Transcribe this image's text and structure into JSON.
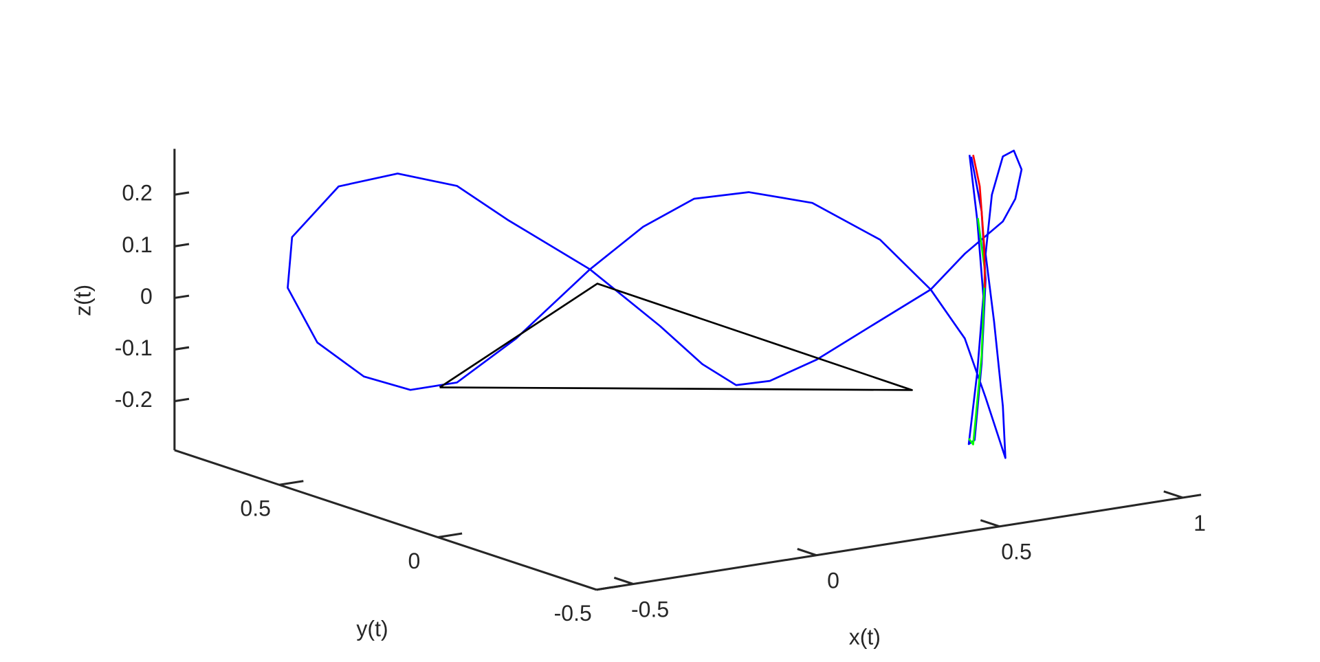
{
  "chart_data": {
    "type": "line3d",
    "xlabel": "x(t)",
    "ylabel": "y(t)",
    "zlabel": "z(t)",
    "xlim": [
      -0.6,
      1.05
    ],
    "ylim": [
      -0.5,
      0.83
    ],
    "zlim": [
      -0.295,
      0.289
    ],
    "xticks": [
      -0.5,
      0,
      0.5,
      1
    ],
    "yticks": [
      -0.5,
      0,
      0.5
    ],
    "zticks": [
      -0.2,
      -0.1,
      0,
      0.1,
      0.2
    ],
    "series": [
      {
        "color": "#0000ff",
        "x": [
          -0.185,
          -0.04,
          0.099,
          0.249,
          0.422,
          0.607,
          0.745,
          0.838,
          0.895,
          0.949,
          0.942,
          0.918,
          0.895,
          0.912,
          0.942,
          0.972,
          0.993,
          0.976,
          0.942,
          0.838,
          0.745,
          0.584,
          0.434,
          0.306,
          0.214,
          0.122,
          0.006,
          -0.185,
          -0.387,
          -0.548,
          -0.675,
          -0.802,
          -0.929,
          -1.01,
          -0.998,
          -0.871,
          -0.71,
          -0.548,
          -0.41,
          -0.185,
          null,
          0.851,
          0.872,
          0.889,
          0.872,
          0.849,
          0.865,
          0.884,
          0.895,
          0.884,
          0.856
        ],
        "y": [
          0,
          0,
          0,
          0,
          0,
          0,
          0,
          0,
          0,
          0,
          0,
          0,
          0,
          0,
          0,
          0,
          0,
          0,
          0,
          0,
          0,
          0,
          0,
          0,
          0,
          0,
          0,
          0,
          0,
          0,
          0,
          0,
          0,
          0,
          0,
          0,
          0,
          0,
          0,
          0,
          null,
          0,
          0,
          0,
          0,
          0,
          0,
          0,
          0,
          0,
          0
        ],
        "z": [
          0.178,
          0.244,
          0.283,
          0.279,
          0.239,
          0.147,
          0.035,
          -0.07,
          -0.191,
          -0.314,
          -0.213,
          -0.046,
          0.087,
          0.2,
          0.271,
          0.279,
          0.24,
          0.185,
          0.145,
          0.094,
          0.035,
          -0.017,
          -0.066,
          -0.093,
          -0.091,
          -0.04,
          0.047,
          0.178,
          0.066,
          -0.001,
          -0.001,
          0.039,
          0.119,
          0.234,
          0.331,
          0.415,
          0.422,
          0.38,
          0.299,
          0.178,
          null,
          0.284,
          0.156,
          0.006,
          -0.14,
          -0.276,
          -0.27,
          -0.124,
          0.038,
          0.171,
          0.28
        ]
      },
      {
        "color": "#000000",
        "x": [
          -0.595,
          -0.165,
          0.694,
          -0.595
        ],
        "y": [
          0,
          0,
          0,
          0
        ],
        "z": [
          -0.005,
          0.148,
          -0.154,
          -0.005
        ]
      },
      {
        "color": "#00ff00",
        "x": [
          0.874,
          0.893,
          0.884,
          0.861,
          0.849
        ],
        "y": [
          0,
          0,
          0,
          0,
          0
        ],
        "z": [
          0.159,
          0.055,
          -0.108,
          -0.278,
          -0.265
        ]
      },
      {
        "color": "#ff0000",
        "x": [
          0.861,
          0.879,
          0.891,
          0.893
        ],
        "y": [
          0,
          0,
          0,
          0
        ],
        "z": [
          0.283,
          0.22,
          0.104,
          0.022
        ]
      }
    ]
  }
}
